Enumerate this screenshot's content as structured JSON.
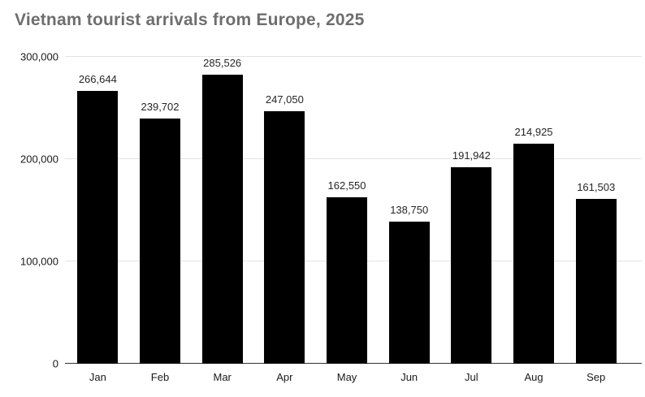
{
  "chart_data": {
    "type": "bar",
    "title": "Vietnam tourist arrivals from Europe, 2025",
    "categories": [
      "Jan",
      "Feb",
      "Mar",
      "Apr",
      "May",
      "Jun",
      "Jul",
      "Aug",
      "Sep"
    ],
    "values": [
      266644,
      239702,
      285526,
      247050,
      162550,
      138750,
      191942,
      214925,
      161503
    ],
    "value_labels": [
      "266,644",
      "239,702",
      "285,526",
      "247,050",
      "162,550",
      "138,750",
      "191,942",
      "214,925",
      "161,503"
    ],
    "xlabel": "",
    "ylabel": "",
    "ylim": [
      0,
      300000
    ],
    "yticks": [
      0,
      100000,
      200000,
      300000
    ],
    "ytick_labels": [
      "0",
      "100,000",
      "200,000",
      "300,000"
    ],
    "grid": true,
    "legend": "none",
    "bar_color": "#000000",
    "colors": {
      "title": "#6e6e6e",
      "axis_text": "#1a1a1a",
      "value_label_text": "#262626",
      "gridline": "#e3e3e3",
      "baseline": "#333333",
      "background": "#ffffff"
    }
  }
}
